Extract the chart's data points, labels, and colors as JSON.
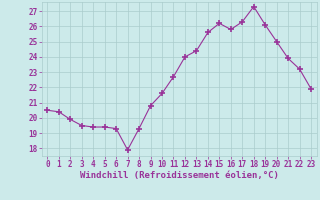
{
  "hours": [
    0,
    1,
    2,
    3,
    4,
    5,
    6,
    7,
    8,
    9,
    10,
    11,
    12,
    13,
    14,
    15,
    16,
    17,
    18,
    19,
    20,
    21,
    22,
    23
  ],
  "values": [
    20.5,
    20.4,
    19.9,
    19.5,
    19.4,
    19.4,
    19.3,
    17.9,
    19.3,
    20.8,
    21.6,
    22.7,
    24.0,
    24.4,
    25.6,
    26.2,
    25.8,
    26.3,
    27.3,
    26.1,
    25.0,
    23.9,
    23.2,
    21.9
  ],
  "line_color": "#993399",
  "marker": "+",
  "marker_size": 4,
  "bg_color": "#cceaea",
  "grid_color": "#aacccc",
  "xlabel": "Windchill (Refroidissement éolien,°C)",
  "ylim": [
    17.5,
    27.6
  ],
  "yticks": [
    18,
    19,
    20,
    21,
    22,
    23,
    24,
    25,
    26,
    27
  ],
  "xticks": [
    0,
    1,
    2,
    3,
    4,
    5,
    6,
    7,
    8,
    9,
    10,
    11,
    12,
    13,
    14,
    15,
    16,
    17,
    18,
    19,
    20,
    21,
    22,
    23
  ],
  "tick_label_size": 5.5,
  "xlabel_size": 6.5
}
